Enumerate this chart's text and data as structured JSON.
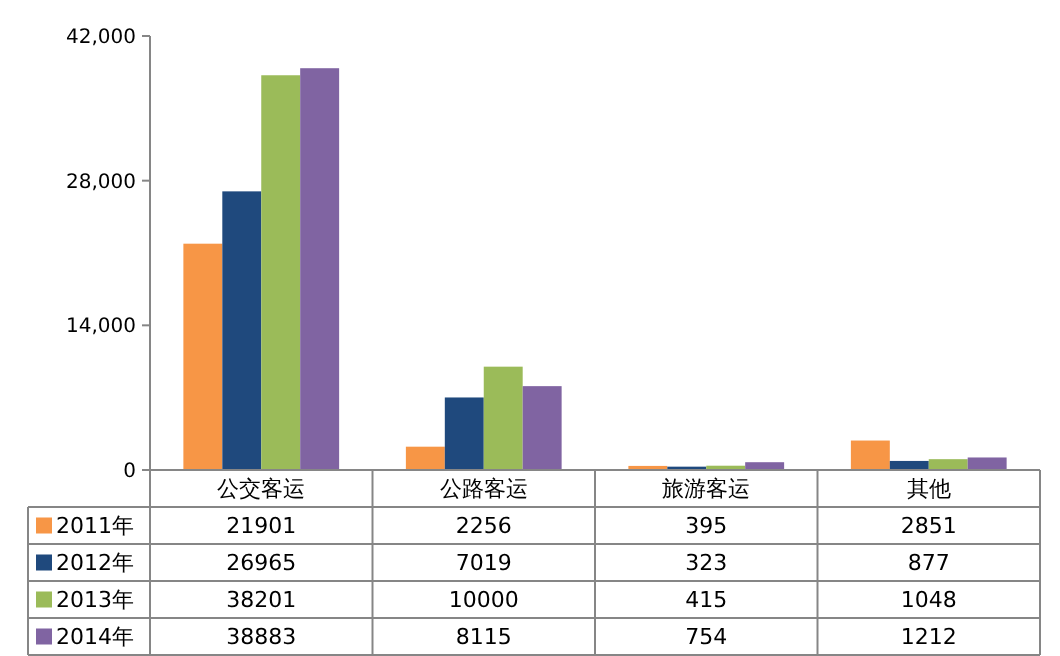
{
  "chart_data": {
    "type": "bar",
    "categories": [
      "公交客运",
      "公路客运",
      "旅游客运",
      "其他"
    ],
    "series": [
      {
        "name": "2011年",
        "color": "#f79646",
        "values": [
          21901,
          2256,
          395,
          2851
        ]
      },
      {
        "name": "2012年",
        "color": "#1f497d",
        "values": [
          26965,
          7019,
          323,
          877
        ]
      },
      {
        "name": "2013年",
        "color": "#9bbb59",
        "values": [
          38201,
          10000,
          415,
          1048
        ]
      },
      {
        "name": "2014年",
        "color": "#8064a2",
        "values": [
          38883,
          8115,
          754,
          1212
        ]
      }
    ],
    "ylim": [
      0,
      42000
    ],
    "yticks": [
      {
        "value": 0,
        "label": "0"
      },
      {
        "value": 14000,
        "label": "14,000"
      },
      {
        "value": 28000,
        "label": "28,000"
      },
      {
        "value": 42000,
        "label": "42,000"
      }
    ],
    "data_labels": true,
    "legend": "bottom"
  }
}
